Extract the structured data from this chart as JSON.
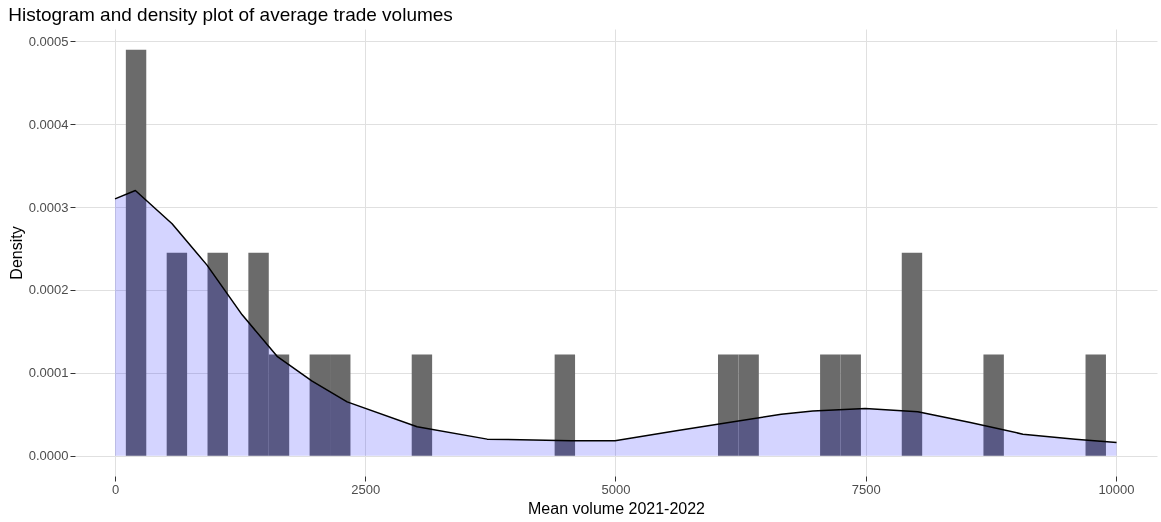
{
  "chart_data": {
    "type": "histogram",
    "title": "Histogram and density plot of average trade volumes",
    "xlabel": "Mean volume 2021-2022",
    "ylabel": "Density",
    "bins": [
      108,
      312,
      516,
      720,
      924,
      1128,
      1332,
      1536,
      1740,
      1944,
      2148,
      2352,
      2556,
      2760,
      2964,
      3168,
      3372,
      3576,
      3780,
      3984,
      4188,
      4392,
      4596,
      4800,
      5004,
      5208,
      5412,
      5616,
      5820,
      6024,
      6228,
      6432,
      6636,
      6840,
      7044,
      7248,
      7452,
      7656,
      7860,
      8064,
      8268,
      8472,
      8676,
      8880,
      9084,
      9288,
      9492,
      9696,
      9900
    ],
    "values": [
      0.00049,
      0,
      0.000245,
      0,
      0.000245,
      0,
      0.000245,
      0.000122,
      0,
      0.000122,
      0.000122,
      0,
      0,
      0,
      0.000122,
      0,
      0,
      0,
      0,
      0,
      0,
      0.000122,
      0,
      0,
      0,
      0,
      0,
      0,
      0,
      0.000122,
      0.000122,
      0,
      0,
      0,
      0.000122,
      0.000122,
      0,
      0,
      0.000245,
      0,
      0,
      0,
      0.000122,
      0,
      0,
      0,
      0,
      0.000122
    ],
    "color": "#6b6b6b",
    "series": [
      {
        "type": "area",
        "color": "#0000ff",
        "x": [
          0,
          203,
          570,
          919,
          1270,
          1619,
          1969,
          2319,
          3018,
          3718,
          4557,
          4995,
          5607,
          6131,
          6656,
          6971,
          7495,
          8020,
          8545,
          9070,
          9594,
          10006
        ],
        "values": [
          0.00031,
          0.00032,
          0.00028,
          0.00023,
          0.00017,
          0.00012,
          9e-05,
          6.5e-05,
          3.5e-05,
          2e-05,
          1.8e-05,
          1.8e-05,
          3e-05,
          4e-05,
          5e-05,
          5.4e-05,
          5.7e-05,
          5.3e-05,
          4e-05,
          2.6e-05,
          2e-05,
          1.6e-05
        ]
      }
    ],
    "xlim": [
      -400,
      10410
    ],
    "xticks": [
      0,
      2500,
      5000,
      7500,
      10000
    ],
    "ylim": [
      -2.45e-05,
      0.000515
    ],
    "yticks": [
      {
        "value": 0,
        "label": "0.0000"
      },
      {
        "value": 0.0001,
        "label": "0.0001"
      },
      {
        "value": 0.0002,
        "label": "0.0002"
      },
      {
        "value": 0.0003,
        "label": "0.0003"
      },
      {
        "value": 0.0004,
        "label": "0.0004"
      },
      {
        "value": 0.0005,
        "label": "0.0005"
      }
    ],
    "grid": true
  }
}
